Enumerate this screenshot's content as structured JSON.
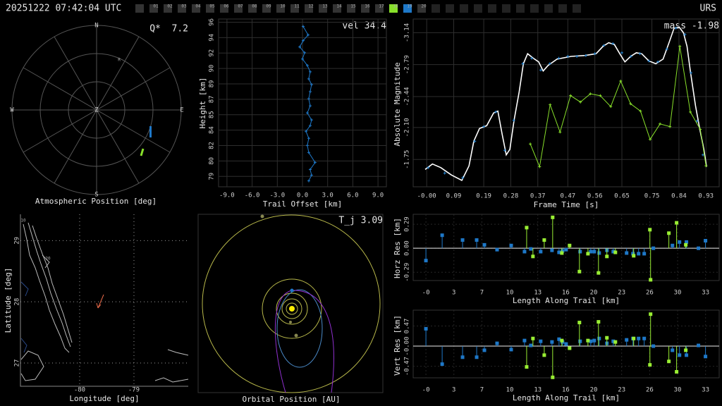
{
  "header": {
    "timestamp": "20251222 07:42:04 UTC",
    "station": "URS",
    "slots": [
      {
        "label": "01",
        "color": "#333333"
      },
      {
        "label": "02",
        "color": "#333333"
      },
      {
        "label": "03",
        "color": "#333333"
      },
      {
        "label": "04",
        "color": "#333333"
      },
      {
        "label": "05",
        "color": "#333333"
      },
      {
        "label": "06",
        "color": "#333333"
      },
      {
        "label": "07",
        "color": "#333333"
      },
      {
        "label": "08",
        "color": "#333333"
      },
      {
        "label": "09",
        "color": "#333333"
      },
      {
        "label": "10",
        "color": "#333333"
      },
      {
        "label": "11",
        "color": "#333333"
      },
      {
        "label": "12",
        "color": "#333333"
      },
      {
        "label": "13",
        "color": "#333333"
      },
      {
        "label": "14",
        "color": "#333333"
      },
      {
        "label": "15",
        "color": "#333333"
      },
      {
        "label": "16",
        "color": "#333333"
      },
      {
        "label": "17",
        "color": "#333333"
      },
      {
        "label": "18",
        "color": "#88e02a"
      },
      {
        "label": "19",
        "color": "#1e78c8"
      },
      {
        "label": "20",
        "color": "#333333"
      }
    ]
  },
  "chart_data": [
    {
      "type": "polar",
      "xlabel": "Atmospheric Position [deg]",
      "annotation": "Q*  7.2",
      "directions": [
        "N",
        "E",
        "S",
        "W",
        "Z"
      ],
      "marker_label": "R"
    },
    {
      "type": "line",
      "annotation": "vel 34.4",
      "xlabel": "Trail Offset [km]",
      "ylabel": "Height [km]",
      "grid": true,
      "xlim": [
        -10,
        10
      ],
      "ylim": [
        77.4,
        95.9
      ],
      "xticks": [
        {
          "value": -9,
          "label": "-9.0"
        },
        {
          "value": -6,
          "label": "-6.0"
        },
        {
          "value": -3,
          "label": "-3.0"
        },
        {
          "value": 0,
          "label": "0.0"
        },
        {
          "value": 3,
          "label": "3.0"
        },
        {
          "value": 6,
          "label": "6.0"
        },
        {
          "value": 9,
          "label": "9.0"
        }
      ],
      "yticks": [
        {
          "value": 78.55,
          "label": "79"
        },
        {
          "value": 80.25,
          "label": "80"
        },
        {
          "value": 81.95,
          "label": "82"
        },
        {
          "value": 83.65,
          "label": "84"
        },
        {
          "value": 85.35,
          "label": "85"
        },
        {
          "value": 87.05,
          "label": "87"
        },
        {
          "value": 88.75,
          "label": "89"
        },
        {
          "value": 90.45,
          "label": "90"
        },
        {
          "value": 92.15,
          "label": "92"
        },
        {
          "value": 93.85,
          "label": "94"
        },
        {
          "value": 95.55,
          "label": "96"
        }
      ],
      "series": [
        {
          "color": "#1e78c8",
          "line": true,
          "marker": "plus",
          "x": [
            0.08,
            0.67,
            0.08,
            -0.33,
            0.25,
            0,
            0.58,
            0.92,
            0.75,
            1.08,
            0.92,
            0.75,
            0.92,
            0.58,
            1.08,
            0.92,
            0.42,
            0.75,
            0.58,
            0.75,
            1.5,
            0.92,
            1.08,
            0.75
          ],
          "values": [
            95.08,
            94.14,
            93.52,
            92.82,
            92.19,
            91.49,
            90.78,
            90.08,
            89.3,
            88.67,
            87.89,
            87.11,
            86.33,
            85.55,
            84.77,
            84.14,
            83.52,
            82.74,
            81.96,
            81.18,
            80.08,
            79.3,
            78.68,
            78.05
          ]
        }
      ]
    },
    {
      "type": "line",
      "annotation": "mass -1.98",
      "xlabel": "Frame Time [s]",
      "ylabel": "Absolute Magnitude",
      "grid": true,
      "xlim": [
        -0.045,
        0.974
      ],
      "ylim": [
        -1.45,
        -3.29
      ],
      "xticks": [
        {
          "value": 0,
          "label": "-0.00"
        },
        0.09,
        0.19,
        0.28,
        0.37,
        0.47,
        0.56,
        0.65,
        0.75,
        0.84,
        0.93
      ],
      "yticks": [
        -3.14,
        -2.79,
        -2.44,
        {
          "value": -2.1,
          "label": "-2.10"
        },
        -1.75
      ],
      "series": [
        {
          "color": "#ffffff",
          "line": true,
          "marker": "none",
          "x": [
            -0.005,
            0.019,
            0.047,
            0.082,
            0.117,
            0.141,
            0.157,
            0.176,
            0.2,
            0.223,
            0.237,
            0.251,
            0.265,
            0.277,
            0.291,
            0.308,
            0.322,
            0.336,
            0.355,
            0.373,
            0.388,
            0.404,
            0.434,
            0.481,
            0.528,
            0.564,
            0.587,
            0.606,
            0.625,
            0.643,
            0.66,
            0.679,
            0.698,
            0.716,
            0.74,
            0.763,
            0.787,
            0.806,
            0.824,
            0.841,
            0.855,
            0.867,
            0.878,
            0.895,
            0.909,
            0.923,
            0.932
          ],
          "values": [
            -1.64,
            -1.7,
            -1.66,
            -1.58,
            -1.52,
            -1.68,
            -1.95,
            -2.09,
            -2.12,
            -2.26,
            -2.28,
            -2.03,
            -1.8,
            -1.86,
            -2.18,
            -2.49,
            -2.8,
            -2.91,
            -2.86,
            -2.82,
            -2.72,
            -2.78,
            -2.85,
            -2.88,
            -2.89,
            -2.91,
            -2.99,
            -3.03,
            -3.01,
            -2.91,
            -2.82,
            -2.88,
            -2.92,
            -2.91,
            -2.83,
            -2.8,
            -2.85,
            -3.02,
            -3.19,
            -3.2,
            -3.14,
            -2.99,
            -2.72,
            -2.34,
            -2.09,
            -1.86,
            -1.67
          ]
        },
        {
          "color": "#2a8ad8",
          "line": false,
          "marker": "plus",
          "x": [
            0.005,
            0.06,
            0.12,
            0.16,
            0.19,
            0.23,
            0.26,
            0.29,
            0.32,
            0.35,
            0.38,
            0.41,
            0.44,
            0.47,
            0.5,
            0.53,
            0.56,
            0.59,
            0.62,
            0.65,
            0.68,
            0.71,
            0.74,
            0.77,
            0.8,
            0.83,
            0.86,
            0.88,
            0.9,
            0.92
          ],
          "values": [
            -1.66,
            -1.6,
            -1.55,
            -1.95,
            -2.11,
            -2.27,
            -1.85,
            -2.18,
            -2.8,
            -2.86,
            -2.73,
            -2.8,
            -2.86,
            -2.88,
            -2.88,
            -2.89,
            -2.91,
            -3,
            -3.02,
            -2.92,
            -2.88,
            -2.91,
            -2.83,
            -2.82,
            -2.96,
            -3.19,
            -3.12,
            -2.7,
            -2.17,
            -1.8
          ]
        },
        {
          "color": "#88e02a",
          "line": true,
          "marker": "plus",
          "x": [
            0.345,
            0.376,
            0.411,
            0.444,
            0.479,
            0.512,
            0.545,
            0.578,
            0.613,
            0.646,
            0.679,
            0.712,
            0.744,
            0.777,
            0.81,
            0.843,
            0.878,
            0.911,
            0.93
          ],
          "values": [
            -1.92,
            -1.67,
            -2.35,
            -2.05,
            -2.45,
            -2.38,
            -2.47,
            -2.45,
            -2.33,
            -2.61,
            -2.36,
            -2.28,
            -1.97,
            -2.14,
            -2.11,
            -2.99,
            -2.27,
            -2.08,
            -1.68
          ]
        }
      ]
    },
    {
      "type": "map",
      "xlabel": "Longitude [deg]",
      "ylabel": "Latitude [deg]",
      "grid": true,
      "xlim": [
        -81.09,
        -78.0
      ],
      "ylim": [
        26.62,
        29.43
      ],
      "xticks": [
        -80,
        -79
      ],
      "yticks": [
        29,
        28,
        27
      ],
      "annotations": [
        "10",
        "20"
      ]
    },
    {
      "type": "orbit",
      "annotation": "T_j 3.09",
      "xlabel": "Orbital Position [AU]"
    },
    {
      "type": "stem",
      "xlabel": "Length Along Trail [km]",
      "ylabel": "Horz Res [km]",
      "grid": true,
      "xlim": [
        -1.5,
        34.5
      ],
      "ylim": [
        -0.39,
        0.41
      ],
      "xticks": [
        {
          "value": 0,
          "label": "-0"
        },
        {
          "value": 3.29,
          "label": "3"
        },
        {
          "value": 6.58,
          "label": "7"
        },
        {
          "value": 9.87,
          "label": "10"
        },
        {
          "value": 13.16,
          "label": "13"
        },
        {
          "value": 16.45,
          "label": "16"
        },
        {
          "value": 19.74,
          "label": "20"
        },
        {
          "value": 23.03,
          "label": "23"
        },
        {
          "value": 26.32,
          "label": "26"
        },
        {
          "value": 29.61,
          "label": "30"
        },
        {
          "value": 32.9,
          "label": "33"
        }
      ],
      "yticks": [
        0.29,
        {
          "value": 0,
          "label": "0.00"
        },
        -0.29
      ],
      "series": [
        {
          "color": "#1e78c8",
          "x": [
            0,
            1.91,
            4.31,
            5.97,
            6.88,
            8.37,
            10.03,
            11.6,
            12.34,
            13.5,
            14.83,
            15.66,
            16.07,
            16.49,
            18.14,
            19.39,
            19.8,
            20.38,
            21.29,
            22.04,
            23.61,
            24.36,
            25.02,
            25.68,
            26.76,
            29,
            29.83,
            30.65,
            32.06,
            32.89
          ],
          "values": [
            -0.149,
            0.157,
            0.099,
            0.099,
            0.041,
            -0.017,
            0.033,
            -0.041,
            -0.008,
            -0.041,
            -0.025,
            -0.05,
            -0.033,
            -0.017,
            -0.041,
            -0.041,
            -0.041,
            -0.058,
            -0.025,
            -0.041,
            -0.058,
            -0.066,
            -0.066,
            -0.066,
            0,
            0.033,
            0.075,
            0.075,
            0,
            0.091
          ]
        },
        {
          "color": "#99ee33",
          "x": [
            11.85,
            12.59,
            13.92,
            14.91,
            15.99,
            16.9,
            18.06,
            19.06,
            20.3,
            21.29,
            22.29,
            24.44,
            26.35,
            26.43,
            28.58,
            29.49,
            30.57
          ],
          "values": [
            0.249,
            -0.099,
            0.099,
            0.373,
            -0.058,
            0.033,
            -0.282,
            -0.066,
            -0.298,
            -0.099,
            -0.05,
            -0.091,
            0.224,
            -0.381,
            0.182,
            0.307,
            0.041
          ]
        }
      ]
    },
    {
      "type": "stem",
      "xlabel": "Length Along Trail [km]",
      "ylabel": "Vert Res [km]",
      "grid": true,
      "xlim": [
        -1.5,
        34.5
      ],
      "ylim": [
        -0.74,
        0.84
      ],
      "xticks": [
        {
          "value": 0,
          "label": "-0"
        },
        {
          "value": 3.29,
          "label": "3"
        },
        {
          "value": 6.58,
          "label": "7"
        },
        {
          "value": 9.87,
          "label": "10"
        },
        {
          "value": 13.16,
          "label": "13"
        },
        {
          "value": 16.45,
          "label": "16"
        },
        {
          "value": 19.74,
          "label": "20"
        },
        {
          "value": 23.03,
          "label": "23"
        },
        {
          "value": 26.32,
          "label": "26"
        },
        {
          "value": 29.61,
          "label": "30"
        },
        {
          "value": 32.9,
          "label": "33"
        }
      ],
      "yticks": [
        0.47,
        {
          "value": 0,
          "label": "-0.00"
        },
        -0.47
      ],
      "series": [
        {
          "color": "#1e78c8",
          "x": [
            0,
            1.91,
            4.31,
            5.97,
            6.88,
            8.37,
            10.03,
            11.6,
            12.34,
            13.5,
            14.83,
            15.66,
            16.07,
            16.49,
            18.14,
            19.39,
            19.8,
            20.38,
            21.29,
            22.04,
            23.61,
            24.36,
            25.02,
            25.68,
            26.76,
            29,
            29.83,
            30.65,
            32.06,
            32.89
          ],
          "values": [
            0.405,
            -0.421,
            -0.259,
            -0.259,
            -0.097,
            0.065,
            -0.081,
            0.13,
            0.016,
            0.113,
            0.097,
            0.162,
            0.097,
            0.049,
            0.113,
            0.113,
            0.13,
            0.178,
            0.065,
            0.113,
            0.146,
            0.178,
            0.178,
            0.178,
            0,
            -0.097,
            -0.211,
            -0.211,
            0.016,
            -0.243
          ]
        },
        {
          "color": "#99ee33",
          "x": [
            11.85,
            12.59,
            13.92,
            14.91,
            15.99,
            16.9,
            18.06,
            19.06,
            20.3,
            21.29,
            22.29,
            24.44,
            26.35,
            26.43,
            28.58,
            29.49,
            30.57
          ],
          "values": [
            -0.486,
            0.178,
            -0.211,
            -0.729,
            0.13,
            -0.049,
            0.551,
            0.13,
            0.567,
            0.194,
            0.097,
            0.178,
            -0.438,
            0.746,
            -0.357,
            -0.6,
            -0.097
          ]
        }
      ]
    }
  ]
}
